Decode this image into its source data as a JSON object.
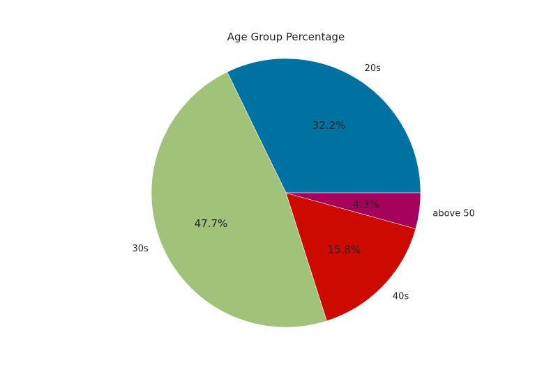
{
  "chart_data": {
    "type": "pie",
    "title": "Age Group Percentage",
    "labels": [
      "20s",
      "30s",
      "40s",
      "above 50"
    ],
    "values": [
      32.2,
      47.7,
      15.8,
      4.3
    ],
    "value_labels": [
      "32.2%",
      "47.7%",
      "15.8%",
      "4.3%"
    ],
    "colors": [
      "#0072a2",
      "#a0c379",
      "#cc0a00",
      "#a5005b"
    ],
    "start_angle": 0,
    "direction": "counterclockwise",
    "legend": "none"
  }
}
